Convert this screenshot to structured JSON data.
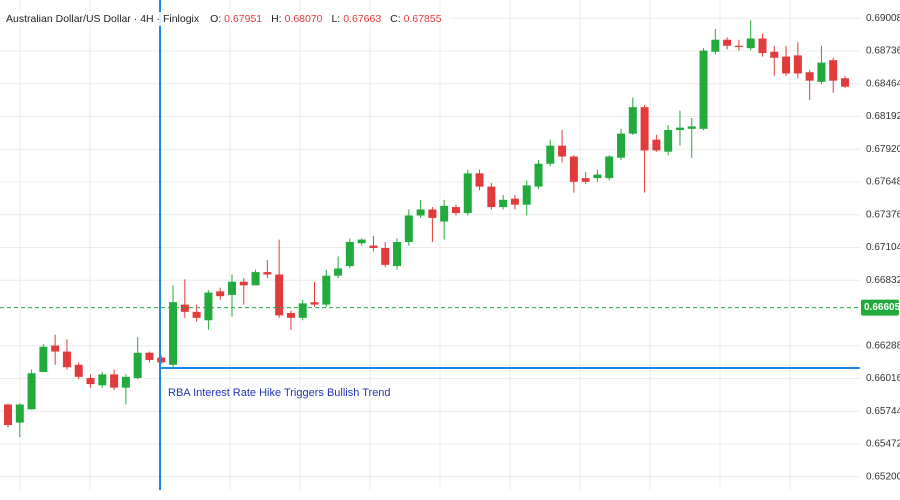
{
  "header": {
    "title": "Australian Dollar/US Dollar · 4H · Finlogix",
    "open_label": "O:",
    "open": 0.67951,
    "high_label": "H:",
    "high": 0.6807,
    "high_text": "0.68070",
    "low_label": "L:",
    "low": 0.67663,
    "close_label": "C:",
    "close": 0.67855
  },
  "chart_data": {
    "type": "candlestick",
    "up_color": "#22ab3c",
    "down_color": "#e23b3b",
    "open": [
      0.658,
      0.6565,
      0.6576,
      0.6607,
      0.6629,
      0.6624,
      0.6613,
      0.6602,
      0.6596,
      0.6605,
      0.6594,
      0.6602,
      0.6623,
      0.6619,
      0.6613,
      0.6663,
      0.6657,
      0.665,
      0.6674,
      0.6671,
      0.6682,
      0.6679,
      0.669,
      0.6688,
      0.6656,
      0.6652,
      0.6665,
      0.6663,
      0.6687,
      0.6695,
      0.6714,
      0.6712,
      0.671,
      0.6695,
      0.6715,
      0.6737,
      0.6742,
      0.6732,
      0.6744,
      0.6739,
      0.6772,
      0.6761,
      0.6744,
      0.6751,
      0.6746,
      0.6761,
      0.678,
      0.6795,
      0.6786,
      0.6768,
      0.6768,
      0.6768,
      0.6785,
      0.6805,
      0.6827,
      0.68,
      0.679,
      0.6808,
      0.6809,
      0.6809,
      0.6873,
      0.6883,
      0.6878,
      0.6876,
      0.6884,
      0.6873,
      0.6869,
      0.687,
      0.6856,
      0.6848,
      0.6866,
      0.6851
    ],
    "high": [
      0.6581,
      0.6581,
      0.6609,
      0.663,
      0.6638,
      0.6634,
      0.6615,
      0.6605,
      0.6607,
      0.6609,
      0.6605,
      0.6636,
      0.6624,
      0.6621,
      0.6679,
      0.6684,
      0.6663,
      0.6675,
      0.6677,
      0.6688,
      0.6685,
      0.6692,
      0.67,
      0.6717,
      0.6658,
      0.6667,
      0.6682,
      0.6692,
      0.6703,
      0.6718,
      0.6718,
      0.672,
      0.6715,
      0.6718,
      0.6742,
      0.675,
      0.6744,
      0.675,
      0.6746,
      0.6775,
      0.6775,
      0.6764,
      0.6754,
      0.6754,
      0.6766,
      0.6783,
      0.68,
      0.6808,
      0.6787,
      0.6773,
      0.6775,
      0.6787,
      0.6809,
      0.6835,
      0.6829,
      0.6804,
      0.6812,
      0.6824,
      0.6818,
      0.6876,
      0.6892,
      0.6885,
      0.6883,
      0.6899,
      0.6888,
      0.6878,
      0.6878,
      0.6881,
      0.6858,
      0.6878,
      0.6868,
      0.6853
    ],
    "low": [
      0.6561,
      0.6553,
      0.6576,
      0.6607,
      0.6613,
      0.6609,
      0.6601,
      0.6594,
      0.6594,
      0.6592,
      0.658,
      0.6601,
      0.6615,
      0.6614,
      0.6611,
      0.6652,
      0.6649,
      0.6642,
      0.6667,
      0.6653,
      0.6663,
      0.6679,
      0.6685,
      0.6652,
      0.6642,
      0.665,
      0.6661,
      0.6661,
      0.6685,
      0.6693,
      0.6712,
      0.6707,
      0.6694,
      0.6692,
      0.6712,
      0.6735,
      0.6715,
      0.6717,
      0.6737,
      0.6737,
      0.6758,
      0.6742,
      0.6742,
      0.6742,
      0.6737,
      0.6759,
      0.6778,
      0.6781,
      0.6756,
      0.6763,
      0.6765,
      0.6766,
      0.6783,
      0.6804,
      0.6756,
      0.679,
      0.6787,
      0.6795,
      0.6785,
      0.6808,
      0.6871,
      0.6875,
      0.6874,
      0.6874,
      0.6869,
      0.6853,
      0.6853,
      0.6851,
      0.6833,
      0.6846,
      0.6839,
      0.6843
    ],
    "close": [
      0.6563,
      0.658,
      0.6606,
      0.6628,
      0.6624,
      0.6611,
      0.6603,
      0.6597,
      0.6605,
      0.6594,
      0.6603,
      0.6623,
      0.6617,
      0.6615,
      0.6665,
      0.6657,
      0.6652,
      0.6673,
      0.667,
      0.6682,
      0.6679,
      0.669,
      0.6688,
      0.6654,
      0.6652,
      0.6664,
      0.6663,
      0.6687,
      0.6693,
      0.6715,
      0.6717,
      0.671,
      0.6696,
      0.6715,
      0.6737,
      0.6742,
      0.6735,
      0.6745,
      0.6739,
      0.6772,
      0.6761,
      0.6744,
      0.675,
      0.6746,
      0.6762,
      0.678,
      0.6795,
      0.6786,
      0.6765,
      0.6765,
      0.6771,
      0.6786,
      0.6805,
      0.6827,
      0.6791,
      0.6791,
      0.6808,
      0.681,
      0.6811,
      0.6874,
      0.6883,
      0.6878,
      0.6877,
      0.6884,
      0.6872,
      0.6868,
      0.6855,
      0.6855,
      0.6849,
      0.6864,
      0.6849,
      0.6844
    ],
    "ylim": [
      0.6509,
      0.6916
    ],
    "yticks": [
      0.69008,
      0.68736,
      0.68464,
      0.68192,
      {
        "value": 0.6792,
        "label": "0.67920"
      },
      0.67648,
      0.67376,
      0.67104,
      0.66832,
      0.66288,
      0.66016,
      0.65744,
      0.65472,
      {
        "value": 0.652,
        "label": "0.65200"
      }
    ],
    "grid": true,
    "current_price": 0.66605,
    "current_price_color": "#22ab3c",
    "annotation": "RBA Interest Rate Hike Triggers Bullish Trend"
  }
}
